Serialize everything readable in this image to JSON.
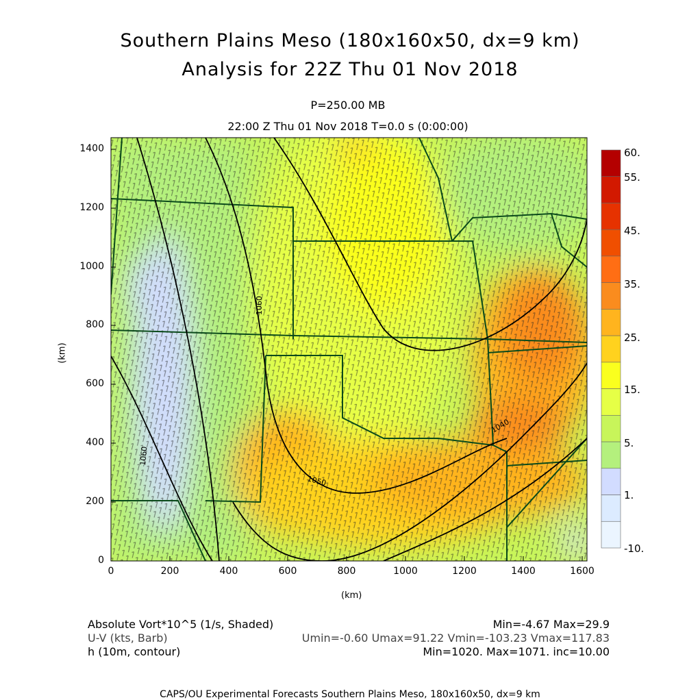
{
  "title": {
    "line1": "Southern Plains Meso (180x160x50, dx=9 km)",
    "line2": "Analysis for 22Z Thu 01 Nov 2018"
  },
  "level": "P=250.00 MB",
  "valid_time": "22:00 Z Thu 01 Nov 2018    T=0.0 s (0:00:00)",
  "axes": {
    "xlabel": "(km)",
    "ylabel": "(km)",
    "x_ticks": [
      "0",
      "200",
      "400",
      "600",
      "800",
      "1000",
      "1200",
      "1400",
      "1600"
    ],
    "y_ticks": [
      "0",
      "200",
      "400",
      "600",
      "800",
      "1000",
      "1200",
      "1400"
    ],
    "x_range": [
      0,
      1620
    ],
    "y_range": [
      0,
      1440
    ]
  },
  "colorbar": {
    "labels": [
      "60.",
      "55.",
      "45.",
      "35.",
      "25.",
      "15.",
      "5.",
      "1.",
      "-10."
    ],
    "colors": [
      "#b40000",
      "#d21900",
      "#e63200",
      "#f04f00",
      "#ff6e14",
      "#fa8c1e",
      "#ffb41e",
      "#ffd21e",
      "#faff1e",
      "#e6ff46",
      "#c8f55a",
      "#b4f07d",
      "#d2dcff",
      "#dcebff",
      "#ebf5ff"
    ]
  },
  "fields": {
    "shaded": {
      "label": "Absolute Vort*10^5 (1/s, Shaded)",
      "stats": "Min=-4.67 Max=29.9"
    },
    "barb": {
      "label": "U-V (kts, Barb)",
      "stats": "Umin=-0.60 Umax=91.22 Vmin=-103.23 Vmax=117.83"
    },
    "contour": {
      "label": "h (10m, contour)",
      "stats": "Min=1020. Max=1071. inc=10.00"
    }
  },
  "contour_labels": [
    "1060",
    "1060",
    "1050",
    "1040"
  ],
  "footer": "CAPS/OU Experimental Forecasts  Southern Plains Meso, 180x160x50, dx=9 km"
}
